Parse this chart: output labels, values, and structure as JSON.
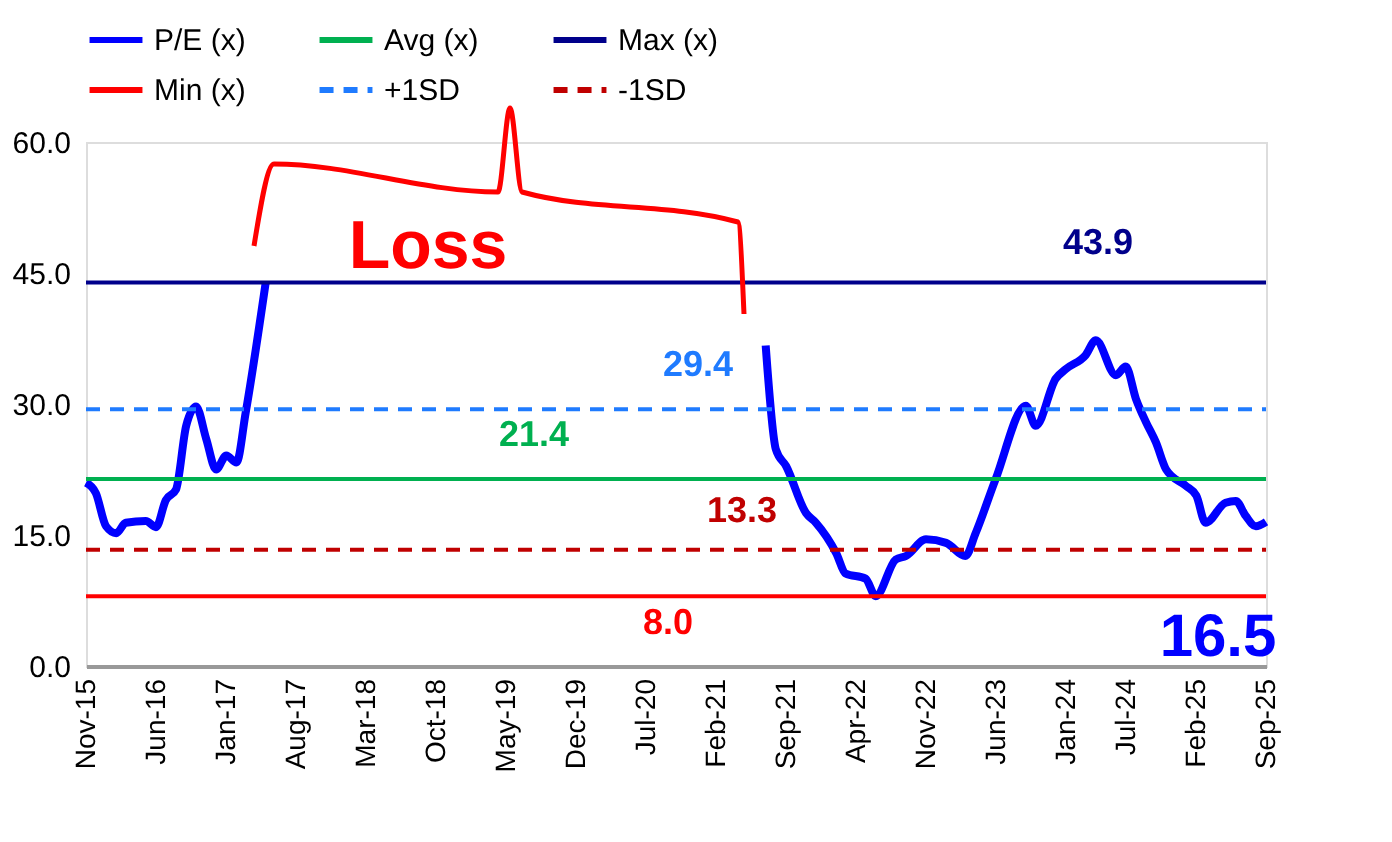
{
  "chart_data": {
    "type": "line",
    "series": [
      {
        "name": "P/E (x)",
        "color": "#0000ff",
        "x": [
          "2015-11",
          "2015-12",
          "2016-01",
          "2016-02",
          "2016-03",
          "2016-05",
          "2016-06",
          "2016-07",
          "2016-08",
          "2016-09",
          "2016-10",
          "2016-11",
          "2016-12",
          "2017-01",
          "2017-02",
          "2017-03",
          "2017-05",
          "2017-06",
          "2021-07",
          "2021-08",
          "2021-09",
          "2021-11",
          "2021-12",
          "2022-02",
          "2022-03",
          "2022-05",
          "2022-06",
          "2022-08",
          "2022-09",
          "2022-11",
          "2023-01",
          "2023-03",
          "2023-04",
          "2023-06",
          "2023-09",
          "2023-10",
          "2023-12",
          "2024-01",
          "2024-03",
          "2024-04",
          "2024-06",
          "2024-07",
          "2024-08",
          "2024-09",
          "2024-10",
          "2024-11",
          "2025-01",
          "2025-02",
          "2025-03",
          "2025-05",
          "2025-06",
          "2025-07",
          "2025-08",
          "2025-09"
        ],
        "values": [
          21,
          19.8,
          16,
          15.2,
          16.4,
          16.6,
          15.9,
          19,
          20.2,
          27.5,
          29.7,
          26,
          22.5,
          24.1,
          23.3,
          29,
          43.9,
          null,
          36.7,
          24.8,
          22.9,
          17.5,
          16.4,
          12.9,
          10.6,
          10,
          8.0,
          12.2,
          12.6,
          14.5,
          14.1,
          12.6,
          15.2,
          21.4,
          29.8,
          27.5,
          32.9,
          34,
          35.6,
          37.3,
          33.3,
          34.3,
          30.6,
          27.9,
          25.6,
          22.5,
          20.6,
          19.5,
          16.4,
          18.7,
          18.9,
          17.2,
          16,
          16.5
        ]
      },
      {
        "name": "Avg (x)",
        "color": "#00b050",
        "x": [
          "2015-11",
          "2025-09"
        ],
        "values": [
          21.4,
          21.4
        ]
      },
      {
        "name": "Max (x)",
        "color": "#00008b",
        "x": [
          "2015-11",
          "2025-09"
        ],
        "values": [
          43.9,
          43.9
        ]
      },
      {
        "name": "Min (x)",
        "color": "#ff0000",
        "x": [
          "2015-11",
          "2025-09"
        ],
        "values": [
          8.0,
          8.0
        ]
      },
      {
        "name": "+1SD",
        "color": "#1f7bff",
        "line_style": "dashed",
        "x": [
          "2015-11",
          "2025-09"
        ],
        "values": [
          29.4,
          29.4
        ]
      },
      {
        "name": "-1SD",
        "color": "#c00000",
        "line_style": "dashed",
        "x": [
          "2015-11",
          "2025-09"
        ],
        "values": [
          13.3,
          13.3
        ]
      }
    ],
    "xlim": [
      "2015-11",
      "2025-09"
    ],
    "xticks": [
      {
        "value": "2015-11",
        "label": "Nov-15"
      },
      {
        "value": "2016-06",
        "label": "Jun-16"
      },
      {
        "value": "2017-01",
        "label": "Jan-17"
      },
      {
        "value": "2017-08",
        "label": "Aug-17"
      },
      {
        "value": "2018-03",
        "label": "Mar-18"
      },
      {
        "value": "2018-10",
        "label": "Oct-18"
      },
      {
        "value": "2019-05",
        "label": "May-19"
      },
      {
        "value": "2019-12",
        "label": "Dec-19"
      },
      {
        "value": "2020-07",
        "label": "Jul-20"
      },
      {
        "value": "2021-02",
        "label": "Feb-21"
      },
      {
        "value": "2021-09",
        "label": "Sep-21"
      },
      {
        "value": "2022-04",
        "label": "Apr-22"
      },
      {
        "value": "2022-11",
        "label": "Nov-22"
      },
      {
        "value": "2023-06",
        "label": "Jun-23"
      },
      {
        "value": "2024-01",
        "label": "Jan-24"
      },
      {
        "value": "2024-07",
        "label": "Jul-24"
      },
      {
        "value": "2025-02",
        "label": "Feb-25"
      },
      {
        "value": "2025-09",
        "label": "Sep-25"
      }
    ],
    "ylim": [
      0,
      60
    ],
    "yticks": [
      {
        "value": 0,
        "label": "0.0"
      },
      {
        "value": 15,
        "label": "15.0"
      },
      {
        "value": 30,
        "label": "30.0"
      },
      {
        "value": 45,
        "label": "45.0"
      },
      {
        "value": 60,
        "label": "60.0"
      }
    ],
    "annotations": [
      "43.9",
      "29.4",
      "21.4",
      "13.3",
      "8.0",
      "16.5",
      "Loss"
    ],
    "grid": false,
    "legend": "top",
    "marker": "none",
    "line_style": "solid"
  }
}
